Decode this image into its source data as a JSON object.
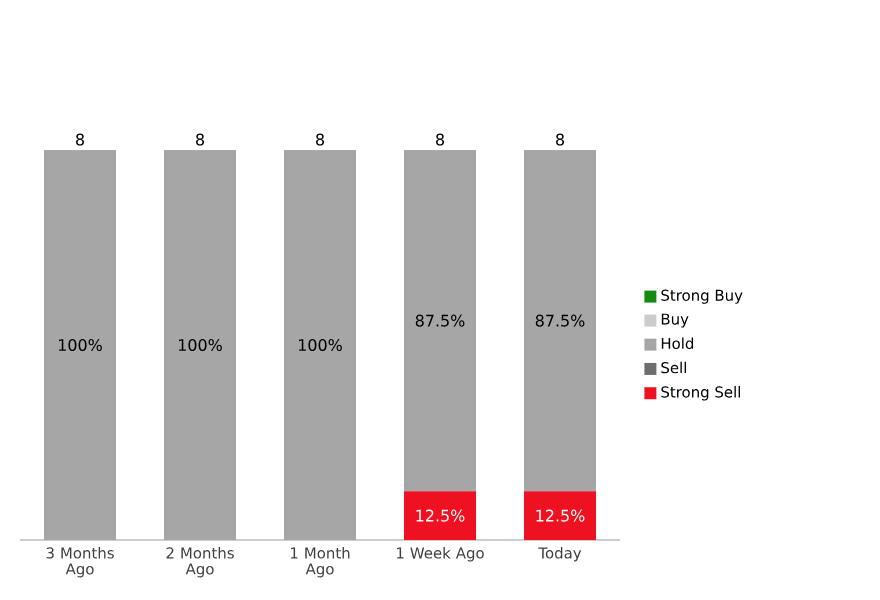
{
  "chart_data": {
    "type": "bar",
    "stacked": true,
    "categories": [
      "3 Months Ago",
      "2 Months Ago",
      "1 Month Ago",
      "1 Week Ago",
      "Today"
    ],
    "legend": "right",
    "annotations": [
      {
        "text": "8",
        "x": "3 Months Ago",
        "y": 100
      },
      {
        "text": "8",
        "x": "2 Months Ago",
        "y": 100
      },
      {
        "text": "8",
        "x": "1 Month Ago",
        "y": 100
      },
      {
        "text": "8",
        "x": "1 Week Ago",
        "y": 100
      },
      {
        "text": "8",
        "x": "Today",
        "y": 100
      }
    ],
    "series": [
      {
        "name": "Strong Sell",
        "color": "#ee1122",
        "values": [
          null,
          null,
          null,
          12.5,
          12.5
        ],
        "value_labels": [
          null,
          null,
          null,
          "12.5%",
          "12.5%"
        ]
      },
      {
        "name": "Sell",
        "color": "#6e6e6e",
        "values": [
          null,
          null,
          null,
          null,
          null
        ],
        "value_labels": [
          null,
          null,
          null,
          null,
          null
        ]
      },
      {
        "name": "Hold",
        "color": "#a6a6a6",
        "values": [
          100,
          100,
          100,
          87.5,
          87.5
        ],
        "value_labels": [
          "100%",
          "100%",
          "100%",
          "87.5%",
          "87.5%"
        ]
      },
      {
        "name": "Buy",
        "color": "#cccccc",
        "values": [
          null,
          null,
          null,
          null,
          null
        ],
        "value_labels": [
          null,
          null,
          null,
          null,
          null
        ]
      },
      {
        "name": "Strong Buy",
        "color": "#148a14",
        "values": [
          null,
          null,
          null,
          null,
          null
        ],
        "value_labels": [
          null,
          null,
          null,
          null,
          null
        ]
      }
    ]
  }
}
